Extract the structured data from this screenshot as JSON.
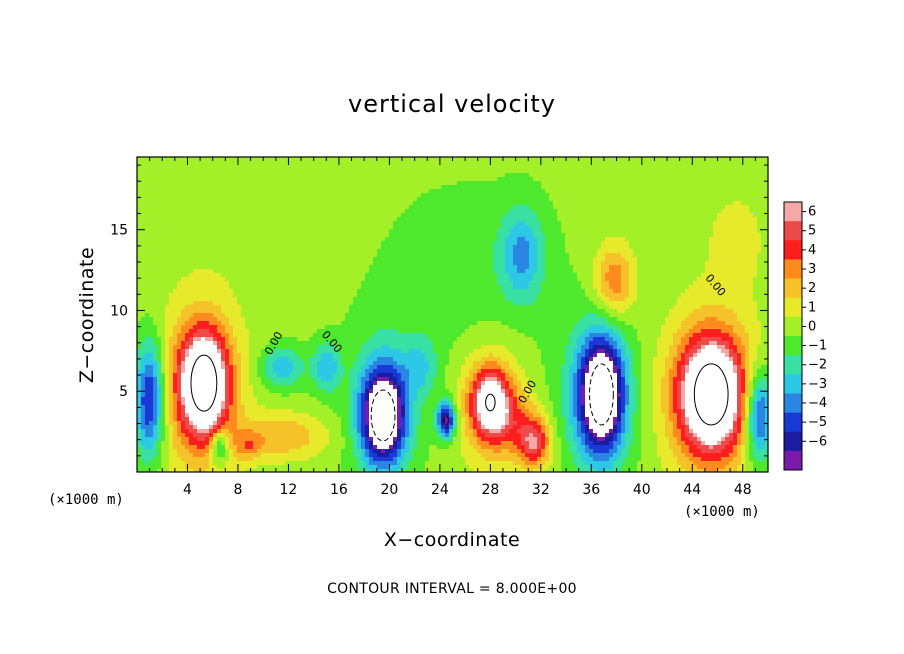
{
  "chart_data": {
    "type": "heatmap",
    "title": "vertical velocity",
    "xlabel": "X−coordinate",
    "ylabel": "Z−coordinate",
    "x_unit_left": "(×1000 m)",
    "x_unit_right": "(×1000 m)",
    "xlim": [
      0,
      50
    ],
    "ylim": [
      0,
      19.5
    ],
    "x_ticks": [
      4,
      8,
      12,
      16,
      20,
      24,
      28,
      32,
      36,
      40,
      44,
      48
    ],
    "y_ticks": [
      5,
      10,
      15
    ],
    "colorbar": {
      "ticks": [
        6,
        5,
        4,
        3,
        2,
        1,
        0,
        -1,
        -2,
        -3,
        -4,
        -5,
        -6
      ],
      "colors": [
        "#f4a8a8",
        "#ee4a4a",
        "#ff1e1e",
        "#ff8a1e",
        "#f6c22a",
        "#e6ea2a",
        "#a4f028",
        "#4ee82c",
        "#38e0a4",
        "#2cc8e6",
        "#2a86e2",
        "#1a3ad8",
        "#1c1ca0",
        "#7a1aa8"
      ]
    },
    "contour_interval_note": "CONTOUR INTERVAL = 8.000E+00",
    "contour_labels": [
      "0.00",
      "0.00",
      "0.00",
      "0.00"
    ],
    "background_value": 0.3,
    "features": [
      {
        "x": 5.3,
        "z": 5.5,
        "sx": 1.3,
        "sy": 2.2,
        "a": 9
      },
      {
        "x": 5.0,
        "z": 5.0,
        "sx": 2.4,
        "sy": 4.0,
        "a": 3
      },
      {
        "x": 1.0,
        "z": 4.5,
        "sx": 0.8,
        "sy": 2.5,
        "a": -6
      },
      {
        "x": 6.5,
        "z": 1.6,
        "sx": 0.5,
        "sy": 0.8,
        "a": -4
      },
      {
        "x": 11.5,
        "z": 2.2,
        "sx": 2.5,
        "sy": 1.0,
        "a": 2.6
      },
      {
        "x": 8.8,
        "z": 1.6,
        "sx": 0.7,
        "sy": 0.6,
        "a": 2.0
      },
      {
        "x": 11.5,
        "z": 6.5,
        "sx": 1.2,
        "sy": 0.9,
        "a": -3
      },
      {
        "x": 15.0,
        "z": 6.5,
        "sx": 0.8,
        "sy": 1.1,
        "a": -3
      },
      {
        "x": 19.5,
        "z": 3.5,
        "sx": 1.2,
        "sy": 2.0,
        "a": -9
      },
      {
        "x": 19.5,
        "z": 4.0,
        "sx": 2.0,
        "sy": 3.5,
        "a": -2
      },
      {
        "x": 24.5,
        "z": 3.2,
        "sx": 0.5,
        "sy": 0.8,
        "a": -7
      },
      {
        "x": 22.5,
        "z": 6.5,
        "sx": 1.0,
        "sy": 1.3,
        "a": -2
      },
      {
        "x": 28.0,
        "z": 4.3,
        "sx": 1.1,
        "sy": 1.5,
        "a": 7
      },
      {
        "x": 28.0,
        "z": 4.0,
        "sx": 2.0,
        "sy": 3.0,
        "a": 2
      },
      {
        "x": 31.5,
        "z": 1.8,
        "sx": 0.9,
        "sy": 1.1,
        "a": 5
      },
      {
        "x": 30.0,
        "z": 3.0,
        "sx": 1.4,
        "sy": 1.5,
        "a": 2
      },
      {
        "x": 30.5,
        "z": 13.5,
        "sx": 1.2,
        "sy": 2.0,
        "a": -3.2
      },
      {
        "x": 36.8,
        "z": 4.8,
        "sx": 1.2,
        "sy": 2.4,
        "a": -9
      },
      {
        "x": 36.5,
        "z": 4.5,
        "sx": 2.2,
        "sy": 3.5,
        "a": -2.5
      },
      {
        "x": 37.8,
        "z": 11.8,
        "sx": 1.1,
        "sy": 1.6,
        "a": 3.6
      },
      {
        "x": 45.5,
        "z": 4.8,
        "sx": 1.7,
        "sy": 2.4,
        "a": 9
      },
      {
        "x": 45.5,
        "z": 4.6,
        "sx": 2.9,
        "sy": 3.8,
        "a": 3
      },
      {
        "x": 49.3,
        "z": 3.5,
        "sx": 0.8,
        "sy": 2.0,
        "a": -6
      },
      {
        "x": 47.5,
        "z": 14.5,
        "sx": 2.0,
        "sy": 2.5,
        "a": 1.0
      },
      {
        "x": 26.0,
        "z": 12.0,
        "sx": 5.0,
        "sy": 4.0,
        "a": -0.9
      },
      {
        "x": 10.0,
        "z": 15.5,
        "sx": 5.0,
        "sy": 3.0,
        "a": 0.4
      }
    ]
  }
}
